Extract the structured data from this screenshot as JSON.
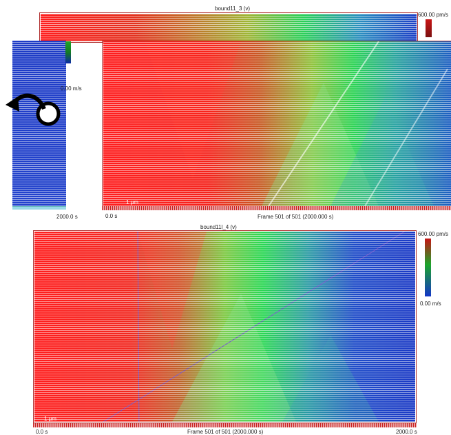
{
  "colors": {
    "fast": "#ff1e1e",
    "mid": "#2bd63c",
    "slow": "#1b3cc8",
    "border": "#b03030"
  },
  "icons": {
    "rotate": "rotate-arrow-icon"
  },
  "panel_top": {
    "title": "bound11_3 (v)",
    "scale_max": "600.00 pm/s",
    "scale_min": "0.00 m/s",
    "scale_bar": "1 μm",
    "time_start": "0.0 s",
    "frame_text": "Frame 501 of 501 (2000.000 s)",
    "side_time": "2000.0 s"
  },
  "panel_bottom": {
    "title": "bound11l_4 (v)",
    "scale_max": "600.00 pm/s",
    "scale_min": "0.00 m/s",
    "scale_bar": "1 μm",
    "time_start": "0.0 s",
    "frame_text": "Frame 501 of 501 (2000.000 s)",
    "time_end": "2000.0 s"
  }
}
